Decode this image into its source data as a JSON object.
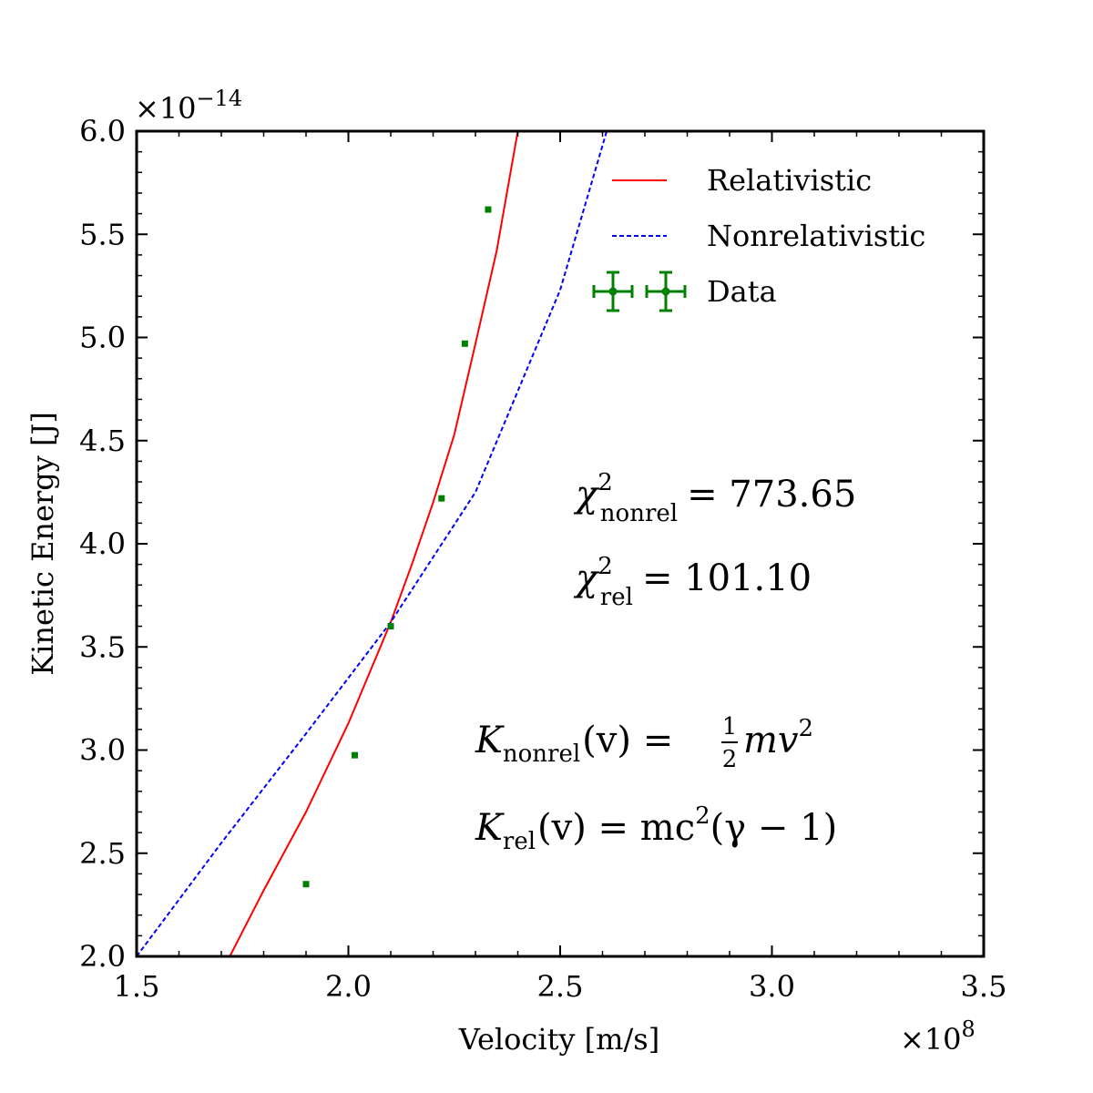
{
  "chart_data": {
    "type": "line",
    "title": "",
    "xlabel": "Velocity [m/s]",
    "ylabel": "Kinetic Energy [J]",
    "x_scale_label": "×10",
    "x_scale_exponent": "8",
    "y_scale_label": "×10",
    "y_scale_exponent": "−14",
    "xlim": [
      1.5,
      3.5
    ],
    "ylim": [
      2.0,
      6.0
    ],
    "x_ticks": [
      "1.5",
      "2.0",
      "2.5",
      "3.0",
      "3.5"
    ],
    "y_ticks": [
      "2.0",
      "2.5",
      "3.0",
      "3.5",
      "4.0",
      "4.5",
      "5.0",
      "5.5",
      "6.0"
    ],
    "grid": false,
    "legend_position": "top-right",
    "series": [
      {
        "name": "Relativistic",
        "kind": "line",
        "style": "solid",
        "color": "#ff0000",
        "x": [
          1.72,
          1.8,
          1.9,
          2.0,
          2.1,
          2.15,
          2.2,
          2.25,
          2.3,
          2.35,
          2.4
        ],
        "y": [
          2.0,
          2.32,
          2.7,
          3.13,
          3.62,
          3.9,
          4.2,
          4.53,
          4.97,
          5.42,
          6.0
        ]
      },
      {
        "name": "Nonrelativistic",
        "kind": "line",
        "style": "dashed",
        "color": "#0000ff",
        "x": [
          1.5,
          1.7,
          1.9,
          2.1,
          2.3,
          2.5,
          2.61
        ],
        "y": [
          2.0,
          2.55,
          3.08,
          3.62,
          4.25,
          5.23,
          6.0
        ]
      },
      {
        "name": "Data",
        "kind": "errorbar",
        "color": "#008000",
        "x": [
          1.9,
          2.015,
          2.1,
          2.22,
          2.275,
          2.33
        ],
        "y": [
          2.35,
          2.975,
          3.6,
          4.22,
          4.97,
          5.62
        ]
      }
    ],
    "annotations": {
      "chi_nonrel": {
        "symbol": "χ",
        "sup": "2",
        "sub": "nonrel",
        "value": "= 773.65"
      },
      "chi_rel": {
        "symbol": "χ",
        "sup": "2",
        "sub": "rel",
        "value": "= 101.10"
      },
      "k_nonrel": {
        "symbol": "K",
        "sub": "nonrel",
        "lhs": "(v) =",
        "num": "1",
        "den": "2",
        "rhs": "mv",
        "sup": "2"
      },
      "k_rel": {
        "symbol": "K",
        "sub": "rel",
        "lhs": "(v) = mc",
        "sup": "2",
        "rhs": "(γ − 1)"
      }
    }
  }
}
